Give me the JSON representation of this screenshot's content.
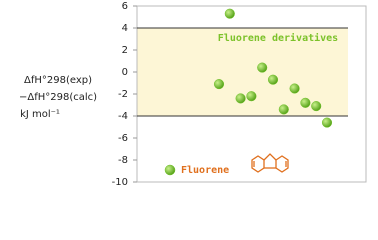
{
  "chart_data": {
    "type": "scatter",
    "y_label": [
      "ΔfH°298(exp)",
      "−ΔfH°298(calc)",
      "kJ mol⁻¹"
    ],
    "categories": [
      null,
      null,
      null,
      null,
      null,
      null,
      null,
      null,
      null,
      null,
      null
    ],
    "series": [
      {
        "name": "Fluorene",
        "color": "#72c12b",
        "label_color": "#e0701e",
        "values": [
          -1.1,
          5.3,
          -2.4,
          -2.2,
          0.4,
          -0.7,
          -3.4,
          -1.5,
          -2.8,
          -3.1,
          -4.6
        ]
      }
    ],
    "band": {
      "label": "Fluorene derivatives",
      "range": [
        -4,
        4
      ],
      "color": "#fdf6d6",
      "label_color": "#7cc22a"
    },
    "ylim": [
      -10,
      6
    ],
    "yticks": [
      -10,
      -8,
      -6,
      -4,
      -2,
      0,
      2,
      4,
      6
    ]
  }
}
